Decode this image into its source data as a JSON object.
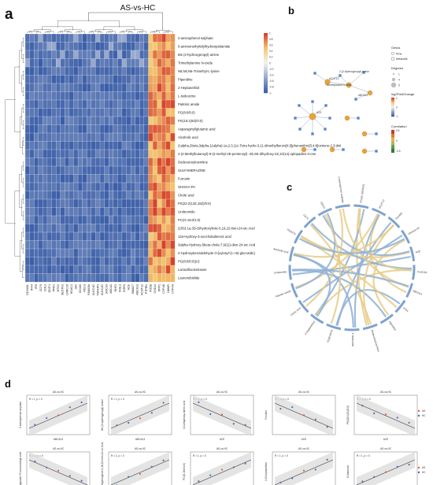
{
  "panels": {
    "a": {
      "letter": "a",
      "title": "AS-vs-HC",
      "rows": [
        "2-aminophenol sulphate",
        "5-aminomethyltolylhydroxipiolamide",
        "Bis (2-hydroxypropyl) amine",
        "Trimethylamine N-oxide",
        "N6,N6,N6-Trimethyl-L-lysine",
        "Piperidine",
        "2-Heptanethiol",
        "L-Isoleucine",
        "Palmitic amide",
        "PG(8:0/8:0)",
        "PG(16:1(9Z)/0:0)",
        "Asparaginyl/glutamic acid",
        "Alcoholic acid",
        "(1alpha,2beta,3alpha,11alpha)-1a,2,3,11c-Tetra hydro-3,11-dimethylbenzo[4,5]phenanthro[3,4-b]oxirene-2,3-diol",
        "2-(2-Methylbutanoyl)-8-(3-methyl-2E-pentenoyl) -2E,6E-dihydroxy-4Z,10(14)-oplopadien-3-one",
        "Dodecanoylcarnitine",
        "SULFAMERAZINE",
        "Furcatin",
        "OHOHA-PA",
        "Cholic acid",
        "PS(22:2(13Z,16Z)/0:0)",
        "Lindeomide",
        "PC(O-16:0/1:0)",
        "(20S)-1a,3D-Dihydroxyhole-5,16,22-trien-24-oic Acid",
        "12a-Hydroxy-3-oxocholadienoic acid",
        "3alpha-Hydroxy-5beta-chola-7,9(11)-dien-24-oic Acid",
        "2-Hydroxybenzaldehyde O-[xylosyl-(1->6)-glucoside]",
        "PG(8:0/8:0)(U)",
        "Lactodifucotetraose",
        "Laurenobiolide"
      ],
      "columns": [
        "DDX60L",
        "IFI44",
        "IFI6",
        "CD70",
        "COL3",
        "DDIT4",
        "PRF1",
        "BTG2",
        "SESTN1",
        "LRRC15",
        "HDAC1",
        "JUN",
        "CD160",
        "PELI3",
        "FAM49A",
        "CLEC4D",
        "TNFAIP3",
        "CLEC2D",
        "SOCS3",
        "ABCA1",
        "RNF2",
        "INSL3",
        "EGR3",
        "ACE",
        "SMAD7",
        "ABCA13",
        "ACOT12",
        "PTPRN",
        "FOSB",
        "CHD11",
        "PPP1",
        "CYP4B",
        "NMUR",
        "CYP4A"
      ],
      "legend_ticks": [
        "1",
        "0.8",
        "0.6",
        "0.4",
        "0.2",
        "0",
        "-0.2",
        "-0.4",
        "-0.6",
        "-0.8",
        "-1"
      ]
    },
    "b": {
      "letter": "b",
      "node_labels": [
        "2-(2-Hydroxypropyl) amine",
        "ACOT12",
        "Trimethylamine N-oxide",
        "ABCA13",
        "ACE"
      ],
      "legend": {
        "omics_title": "Omics",
        "omics_items": [
          "Mrna",
          "Metabolite"
        ],
        "degree_title": "Degrees",
        "degree_items": [
          "1",
          "4",
          "5"
        ],
        "lfc_title": "log2FoldChange",
        "lfc_ticks": [
          "-1",
          "0",
          "1"
        ],
        "cor_title": "Correlation",
        "cor_ticks": [
          "0.5",
          "0",
          "-0.5"
        ]
      }
    },
    "c": {
      "letter": "c",
      "labels": [
        "PG(16:1(9Z)/0:0)",
        "ACOT12",
        "Furcatin",
        "OHOHA-PA",
        "ACE",
        "CLEC2D",
        "ABCA13",
        "IFI44",
        "Piperidine",
        "Dodecanoylcarnitine",
        "L-Isoleucine",
        "PG(8:0/8:0)",
        "2-Heptanethiol",
        "Cholic acid",
        "Palmitic amide",
        "Lindeomide",
        "Alcoholic acid",
        "PS(22:2)",
        "CD70",
        "DDIT4",
        "2-aminophenol sulphate"
      ]
    },
    "d": {
      "letter": "d",
      "plots": [
        {
          "title": "AS-vs-HC",
          "stat": "R = 1, p = 0",
          "xlabel": "ABCA13",
          "ylabel": "2-aminophenol sulphate"
        },
        {
          "title": "AS-vs-HC",
          "stat": "R = 1, p = 0",
          "xlabel": "ABCA13",
          "ylabel": "Bis (2-hydroxypropyl) amine"
        },
        {
          "title": "AS-vs-HC",
          "stat": "R = -1, p = 0",
          "xlabel": "ACE",
          "ylabel": "2,2-dihydroxy-valeric acid"
        },
        {
          "title": "AS-vs-HC",
          "stat": "R = -1, p = 0",
          "xlabel": "ACE",
          "ylabel": "Furcatin"
        },
        {
          "title": "AS-vs-HC",
          "stat": "R = -1, p = 0",
          "xlabel": "ACE",
          "ylabel": "PG(16:1(9Z)/0:0)"
        },
        {
          "title": "AS-vs-HC",
          "stat": "R = -1, p = 0",
          "xlabel": "ACE",
          "ylabel": "Prostaglandin F2-a-monoethyl-ester"
        },
        {
          "title": "AS-vs-HC",
          "stat": "R = 1, p = 0",
          "xlabel": "ACOT12",
          "ylabel": "(20S)-1a,3D-Dihydroxyhole-5,16,22-trien-24-oic Acid"
        },
        {
          "title": "AS-vs-HC",
          "stat": "R = 1, p = 0",
          "xlabel": "ACOT12",
          "ylabel": "PC(O-16:0/1:0)"
        },
        {
          "title": "AS-vs-HC",
          "stat": "R = 1, p = 0",
          "xlabel": "ACOT12",
          "ylabel": "2-O-heptanethiol"
        },
        {
          "title": "AS-vs-HC",
          "stat": "R = 1, p = 0",
          "xlabel": "ACOT12",
          "ylabel": "D-Mannose"
        }
      ],
      "legend_items": [
        "AS",
        "HC"
      ]
    }
  },
  "colors": {
    "neg": "#4a6db5",
    "pos": "#e2603a",
    "metabolite": "#5c86c7",
    "gene": "#e8a23a",
    "chord_a": "#e6cd8a",
    "chord_b": "#8fb0d6"
  }
}
